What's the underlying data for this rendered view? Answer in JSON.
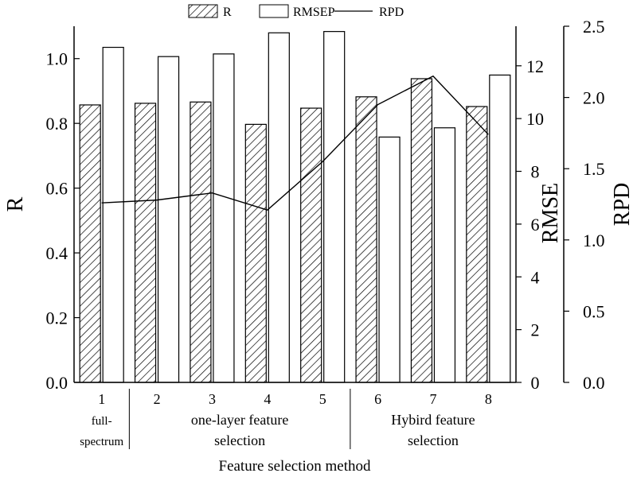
{
  "chart_data": {
    "type": "bar",
    "categories": [
      "1",
      "2",
      "3",
      "4",
      "5",
      "6",
      "7",
      "8"
    ],
    "series": [
      {
        "name": "R",
        "axis": "R",
        "style": "hatched-bar",
        "values": [
          0.857,
          0.862,
          0.866,
          0.797,
          0.847,
          0.882,
          0.938,
          0.852
        ]
      },
      {
        "name": "RMSEP",
        "axis": "RMSE",
        "style": "open-bar",
        "values": [
          12.7,
          12.35,
          12.45,
          13.25,
          13.3,
          9.3,
          9.65,
          11.65
        ]
      },
      {
        "name": "RPD",
        "axis": "RPD",
        "style": "line",
        "values": [
          1.26,
          1.28,
          1.33,
          1.21,
          1.55,
          1.95,
          2.15,
          1.74
        ]
      }
    ],
    "axes": {
      "R": {
        "label": "R",
        "range": [
          0,
          1.1
        ],
        "ticks": [
          "0.0",
          "0.2",
          "0.4",
          "0.6",
          "0.8",
          "1.0"
        ],
        "tick_values": [
          0,
          0.2,
          0.4,
          0.6,
          0.8,
          1.0
        ],
        "position": "left"
      },
      "RMSE": {
        "label": "RMSE",
        "range": [
          0,
          13.5
        ],
        "ticks": [
          "0",
          "2",
          "4",
          "6",
          "8",
          "10",
          "12"
        ],
        "tick_values": [
          0,
          2,
          4,
          6,
          8,
          10,
          12
        ],
        "position": "right-inner"
      },
      "RPD": {
        "label": "RPD",
        "range": [
          0,
          2.5
        ],
        "ticks": [
          "0.0",
          "0.5",
          "1.0",
          "1.5",
          "2.0",
          "2.5"
        ],
        "tick_values": [
          0,
          0.5,
          1.0,
          1.5,
          2.0,
          2.5
        ],
        "position": "right-outer"
      }
    },
    "xlabel": "Feature selection method",
    "groups": [
      {
        "lines": [
          "full-",
          "spectrum"
        ],
        "from": 1,
        "to": 1
      },
      {
        "lines": [
          "one-layer feature",
          "selection"
        ],
        "from": 2,
        "to": 5
      },
      {
        "lines": [
          "Hybird feature",
          "selection"
        ],
        "from": 6,
        "to": 8
      }
    ],
    "legend": {
      "placement": "top",
      "entries": [
        "R",
        "RMSEP",
        "RPD"
      ]
    },
    "grid": false
  }
}
